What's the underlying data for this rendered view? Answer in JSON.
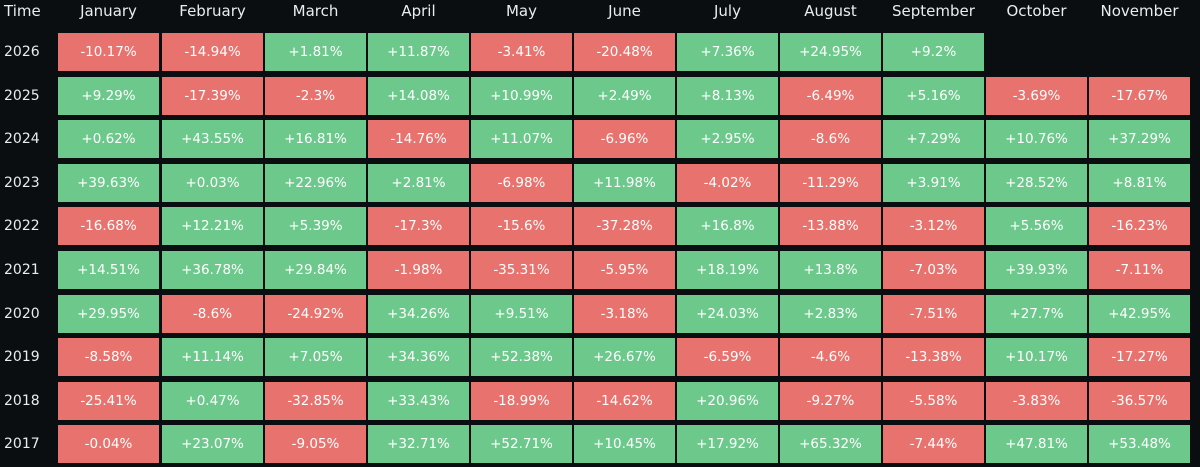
{
  "header": {
    "time_label": "Time",
    "months": [
      "January",
      "February",
      "March",
      "April",
      "May",
      "June",
      "July",
      "August",
      "September",
      "October",
      "November"
    ]
  },
  "colors": {
    "positive": "#6cc98b",
    "negative": "#e8736e",
    "background": "#0b0e11"
  },
  "rows": [
    {
      "year": "2026",
      "values": [
        "-10.17%",
        "-14.94%",
        "+1.81%",
        "+11.87%",
        "-3.41%",
        "-20.48%",
        "+7.36%",
        "+24.95%",
        "+9.2%",
        "",
        ""
      ]
    },
    {
      "year": "2025",
      "values": [
        "+9.29%",
        "-17.39%",
        "-2.3%",
        "+14.08%",
        "+10.99%",
        "+2.49%",
        "+8.13%",
        "-6.49%",
        "+5.16%",
        "-3.69%",
        "-17.67%"
      ]
    },
    {
      "year": "2024",
      "values": [
        "+0.62%",
        "+43.55%",
        "+16.81%",
        "-14.76%",
        "+11.07%",
        "-6.96%",
        "+2.95%",
        "-8.6%",
        "+7.29%",
        "+10.76%",
        "+37.29%"
      ]
    },
    {
      "year": "2023",
      "values": [
        "+39.63%",
        "+0.03%",
        "+22.96%",
        "+2.81%",
        "-6.98%",
        "+11.98%",
        "-4.02%",
        "-11.29%",
        "+3.91%",
        "+28.52%",
        "+8.81%"
      ]
    },
    {
      "year": "2022",
      "values": [
        "-16.68%",
        "+12.21%",
        "+5.39%",
        "-17.3%",
        "-15.6%",
        "-37.28%",
        "+16.8%",
        "-13.88%",
        "-3.12%",
        "+5.56%",
        "-16.23%"
      ]
    },
    {
      "year": "2021",
      "values": [
        "+14.51%",
        "+36.78%",
        "+29.84%",
        "-1.98%",
        "-35.31%",
        "-5.95%",
        "+18.19%",
        "+13.8%",
        "-7.03%",
        "+39.93%",
        "-7.11%"
      ]
    },
    {
      "year": "2020",
      "values": [
        "+29.95%",
        "-8.6%",
        "-24.92%",
        "+34.26%",
        "+9.51%",
        "-3.18%",
        "+24.03%",
        "+2.83%",
        "-7.51%",
        "+27.7%",
        "+42.95%"
      ]
    },
    {
      "year": "2019",
      "values": [
        "-8.58%",
        "+11.14%",
        "+7.05%",
        "+34.36%",
        "+52.38%",
        "+26.67%",
        "-6.59%",
        "-4.6%",
        "-13.38%",
        "+10.17%",
        "-17.27%"
      ]
    },
    {
      "year": "2018",
      "values": [
        "-25.41%",
        "+0.47%",
        "-32.85%",
        "+33.43%",
        "-18.99%",
        "-14.62%",
        "+20.96%",
        "-9.27%",
        "-5.58%",
        "-3.83%",
        "-36.57%"
      ]
    },
    {
      "year": "2017",
      "values": [
        "-0.04%",
        "+23.07%",
        "-9.05%",
        "+32.71%",
        "+52.71%",
        "+10.45%",
        "+17.92%",
        "+65.32%",
        "-7.44%",
        "+47.81%",
        "+53.48%"
      ]
    }
  ]
}
